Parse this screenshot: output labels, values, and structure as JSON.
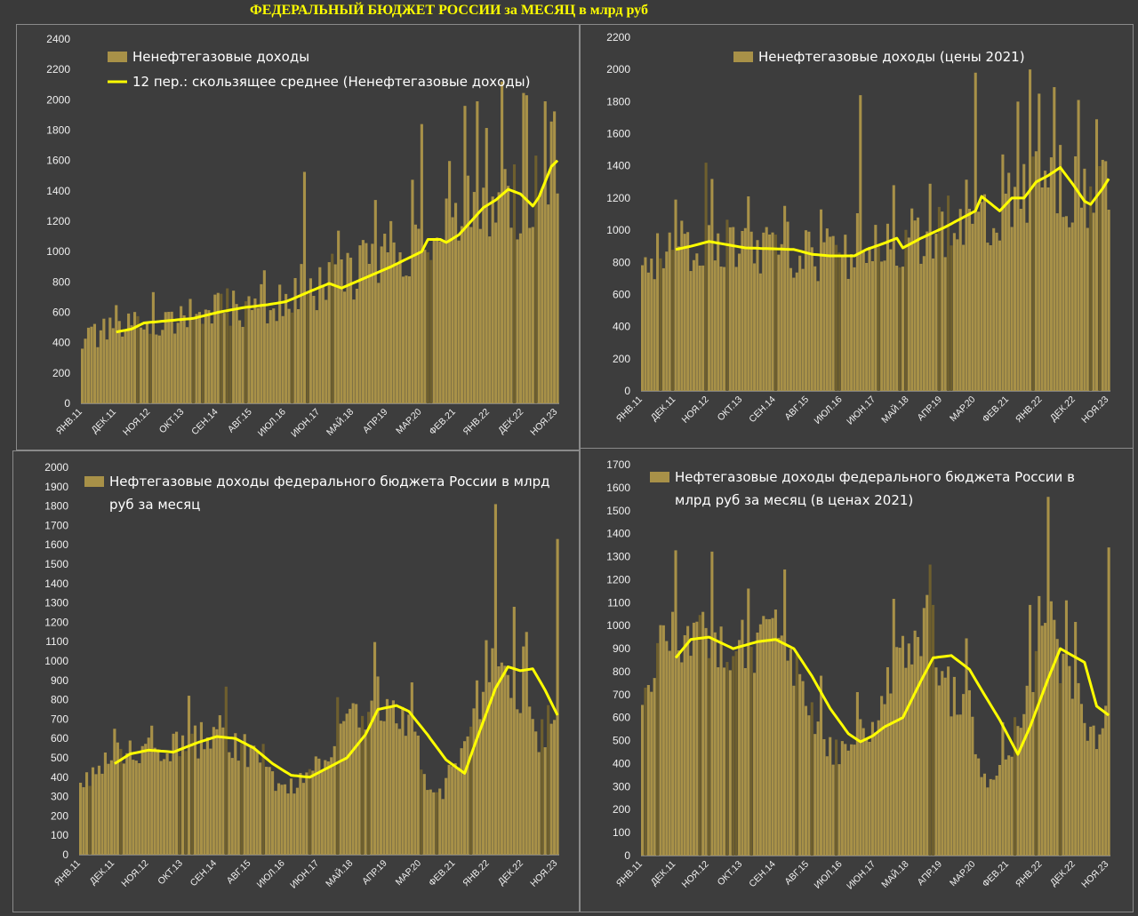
{
  "page": {
    "title": "ФЕДЕРАЛЬНЫЙ БЮДЖЕТ РОССИИ за МЕСЯЦ в млрд руб"
  },
  "colors": {
    "bar": "#a89148",
    "bar_dark": "#6e5f2e",
    "line": "#ffff00",
    "background": "#3d3d3d",
    "text": "#f0f0f0"
  },
  "chart_data": [
    {
      "type": "bar",
      "legend": [
        "Ненефтегазовые доходы",
        "12 пер.: скользящее среднее (Ненефтегазовые доходы)"
      ],
      "x_start": "2011-01",
      "x_tick_labels": [
        "ЯНВ.11",
        "ДЕК.11",
        "НОЯ.12",
        "ОКТ.13",
        "СЕН.14",
        "АВГ.15",
        "ИЮЛ.16",
        "ИЮН.17",
        "МАЙ.18",
        "АПР.19",
        "МАР.20",
        "ФЕВ.21",
        "ЯНВ.22",
        "ДЕК.22",
        "НОЯ.23"
      ],
      "y_ticks": [
        0,
        200,
        400,
        600,
        800,
        1000,
        1200,
        1400,
        1600,
        1800,
        2000,
        2200,
        2400
      ],
      "ylim": [
        0,
        2400
      ],
      "trend_anchors": [
        [
          0,
          420
        ],
        [
          11,
          480
        ],
        [
          23,
          540
        ],
        [
          35,
          560
        ],
        [
          47,
          620
        ],
        [
          59,
          650
        ],
        [
          71,
          700
        ],
        [
          83,
          830
        ],
        [
          95,
          950
        ],
        [
          107,
          1060
        ],
        [
          113,
          1110
        ],
        [
          119,
          1120
        ],
        [
          131,
          1400
        ],
        [
          137,
          1310
        ],
        [
          143,
          1420
        ],
        [
          154,
          1650
        ]
      ],
      "noise": 0.28,
      "ma_start": 11,
      "ma_points": [
        [
          11,
          470
        ],
        [
          16,
          490
        ],
        [
          20,
          530
        ],
        [
          28,
          545
        ],
        [
          36,
          560
        ],
        [
          44,
          600
        ],
        [
          52,
          630
        ],
        [
          60,
          650
        ],
        [
          66,
          670
        ],
        [
          74,
          740
        ],
        [
          80,
          790
        ],
        [
          84,
          760
        ],
        [
          92,
          830
        ],
        [
          100,
          900
        ],
        [
          106,
          960
        ],
        [
          110,
          1000
        ],
        [
          112,
          1080
        ],
        [
          116,
          1080
        ],
        [
          118,
          1060
        ],
        [
          122,
          1110
        ],
        [
          126,
          1200
        ],
        [
          130,
          1290
        ],
        [
          134,
          1340
        ],
        [
          138,
          1410
        ],
        [
          142,
          1380
        ],
        [
          146,
          1300
        ],
        [
          148,
          1360
        ],
        [
          152,
          1560
        ],
        [
          156,
          1640
        ]
      ],
      "spikes": [
        [
          72,
          1525
        ],
        [
          110,
          1840
        ],
        [
          124,
          1960
        ],
        [
          128,
          1990
        ],
        [
          136,
          2120
        ],
        [
          144,
          2030
        ],
        [
          150,
          1990
        ],
        [
          155,
          1840
        ]
      ]
    },
    {
      "type": "bar",
      "legend": [
        "Ненефтегазовые доходы (цены 2021)"
      ],
      "x_start": "2011-01",
      "x_tick_labels": [
        "ЯНВ.11",
        "ДЕК.11",
        "НОЯ.12",
        "ОКТ.13",
        "СЕН.14",
        "АВГ.15",
        "ИЮЛ.16",
        "ИЮН.17",
        "МАЙ.18",
        "АПР.19",
        "МАР.20",
        "ФЕВ.21",
        "ЯНВ.22",
        "ДЕК.22",
        "НОЯ.23"
      ],
      "y_ticks": [
        0,
        200,
        400,
        600,
        800,
        1000,
        1200,
        1400,
        1600,
        1800,
        2000,
        2200
      ],
      "ylim": [
        0,
        2200
      ],
      "trend_anchors": [
        [
          0,
          820
        ],
        [
          11,
          880
        ],
        [
          23,
          920
        ],
        [
          35,
          890
        ],
        [
          47,
          880
        ],
        [
          59,
          850
        ],
        [
          71,
          840
        ],
        [
          83,
          920
        ],
        [
          95,
          1000
        ],
        [
          107,
          1080
        ],
        [
          119,
          1150
        ],
        [
          131,
          1300
        ],
        [
          137,
          1380
        ],
        [
          143,
          1200
        ],
        [
          154,
          1380
        ]
      ],
      "noise": 0.25,
      "ma_start": 11,
      "ma_points": [
        [
          11,
          880
        ],
        [
          16,
          900
        ],
        [
          22,
          930
        ],
        [
          28,
          910
        ],
        [
          34,
          890
        ],
        [
          42,
          885
        ],
        [
          50,
          880
        ],
        [
          56,
          850
        ],
        [
          62,
          840
        ],
        [
          70,
          840
        ],
        [
          74,
          880
        ],
        [
          80,
          920
        ],
        [
          84,
          950
        ],
        [
          86,
          890
        ],
        [
          92,
          950
        ],
        [
          100,
          1020
        ],
        [
          106,
          1080
        ],
        [
          110,
          1120
        ],
        [
          112,
          1210
        ],
        [
          116,
          1150
        ],
        [
          118,
          1120
        ],
        [
          122,
          1200
        ],
        [
          126,
          1200
        ],
        [
          130,
          1300
        ],
        [
          134,
          1340
        ],
        [
          138,
          1390
        ],
        [
          142,
          1290
        ],
        [
          146,
          1180
        ],
        [
          148,
          1160
        ],
        [
          152,
          1260
        ],
        [
          156,
          1380
        ]
      ],
      "spikes": [
        [
          21,
          1420
        ],
        [
          72,
          1840
        ],
        [
          110,
          1980
        ],
        [
          124,
          1800
        ],
        [
          128,
          2000
        ],
        [
          136,
          1890
        ],
        [
          144,
          1810
        ],
        [
          150,
          1690
        ],
        [
          155,
          1480
        ]
      ]
    },
    {
      "type": "bar",
      "legend": [
        "Нефтегазовые доходы федерального бюджета России в млрд",
        "руб за месяц"
      ],
      "x_start": "2011-01",
      "x_tick_labels": [
        "ЯНВ.11",
        "ДЕК.11",
        "НОЯ.12",
        "ОКТ.13",
        "СЕН.14",
        "АВГ.15",
        "ИЮЛ.16",
        "ИЮН.17",
        "МАЙ.18",
        "АПР.19",
        "МАР.20",
        "ФЕВ.21",
        "ЯНВ.22",
        "ДЕК.22",
        "НОЯ.23"
      ],
      "y_ticks": [
        0,
        100,
        200,
        300,
        400,
        500,
        600,
        700,
        800,
        900,
        1000,
        1100,
        1200,
        1300,
        1400,
        1500,
        1600,
        1700,
        1800,
        1900,
        2000
      ],
      "ylim": [
        0,
        2000
      ],
      "trend_anchors": [
        [
          0,
          350
        ],
        [
          6,
          470
        ],
        [
          11,
          500
        ],
        [
          23,
          530
        ],
        [
          35,
          570
        ],
        [
          45,
          620
        ],
        [
          55,
          520
        ],
        [
          63,
          380
        ],
        [
          70,
          330
        ],
        [
          77,
          480
        ],
        [
          85,
          640
        ],
        [
          94,
          790
        ],
        [
          102,
          700
        ],
        [
          108,
          640
        ],
        [
          112,
          350
        ],
        [
          116,
          300
        ],
        [
          122,
          450
        ],
        [
          130,
          800
        ],
        [
          134,
          1000
        ],
        [
          140,
          880
        ],
        [
          144,
          850
        ],
        [
          148,
          600
        ],
        [
          152,
          700
        ],
        [
          156,
          900
        ]
      ],
      "noise": 0.2,
      "ma_start": 11,
      "ma_points": [
        [
          11,
          470
        ],
        [
          16,
          520
        ],
        [
          22,
          540
        ],
        [
          30,
          530
        ],
        [
          38,
          580
        ],
        [
          44,
          610
        ],
        [
          50,
          600
        ],
        [
          56,
          550
        ],
        [
          62,
          470
        ],
        [
          68,
          410
        ],
        [
          74,
          400
        ],
        [
          80,
          450
        ],
        [
          86,
          500
        ],
        [
          92,
          620
        ],
        [
          96,
          750
        ],
        [
          102,
          770
        ],
        [
          106,
          740
        ],
        [
          112,
          620
        ],
        [
          118,
          490
        ],
        [
          124,
          420
        ],
        [
          128,
          600
        ],
        [
          134,
          860
        ],
        [
          138,
          970
        ],
        [
          142,
          950
        ],
        [
          146,
          960
        ],
        [
          150,
          850
        ],
        [
          154,
          720
        ],
        [
          156,
          770
        ]
      ],
      "spikes": [
        [
          45,
          720
        ],
        [
          96,
          920
        ],
        [
          128,
          900
        ],
        [
          134,
          1810
        ],
        [
          140,
          1280
        ],
        [
          144,
          1150
        ],
        [
          154,
          1630
        ],
        [
          156,
          1010
        ]
      ]
    },
    {
      "type": "bar",
      "legend": [
        "Нефтегазовые доходы федерального бюджета России в",
        "млрд руб за месяц (в ценах 2021)"
      ],
      "x_start": "2011-01",
      "x_tick_labels": [
        "ЯНВ.11",
        "ДЕК.11",
        "НОЯ.12",
        "ОКТ.13",
        "СЕН.14",
        "АВГ.15",
        "ИЮЛ.16",
        "ИЮН.17",
        "МАЙ.18",
        "АПР.19",
        "МАР.20",
        "ФЕВ.21",
        "ЯНВ.22",
        "ДЕК.22",
        "НОЯ.23"
      ],
      "y_ticks": [
        0,
        100,
        200,
        300,
        400,
        500,
        600,
        700,
        800,
        900,
        1000,
        1100,
        1200,
        1300,
        1400,
        1500,
        1600,
        1700
      ],
      "ylim": [
        0,
        1700
      ],
      "trend_anchors": [
        [
          0,
          650
        ],
        [
          6,
          880
        ],
        [
          11,
          940
        ],
        [
          23,
          950
        ],
        [
          35,
          920
        ],
        [
          45,
          920
        ],
        [
          50,
          800
        ],
        [
          55,
          640
        ],
        [
          63,
          450
        ],
        [
          70,
          500
        ],
        [
          77,
          600
        ],
        [
          85,
          900
        ],
        [
          94,
          1000
        ],
        [
          102,
          700
        ],
        [
          108,
          650
        ],
        [
          112,
          330
        ],
        [
          116,
          300
        ],
        [
          122,
          500
        ],
        [
          130,
          850
        ],
        [
          134,
          1000
        ],
        [
          140,
          800
        ],
        [
          144,
          750
        ],
        [
          148,
          500
        ],
        [
          152,
          550
        ],
        [
          156,
          780
        ]
      ],
      "noise": 0.18,
      "ma_start": 11,
      "ma_points": [
        [
          11,
          860
        ],
        [
          16,
          940
        ],
        [
          22,
          950
        ],
        [
          30,
          900
        ],
        [
          38,
          930
        ],
        [
          44,
          940
        ],
        [
          50,
          900
        ],
        [
          56,
          780
        ],
        [
          62,
          640
        ],
        [
          68,
          530
        ],
        [
          72,
          495
        ],
        [
          76,
          520
        ],
        [
          80,
          560
        ],
        [
          86,
          600
        ],
        [
          92,
          760
        ],
        [
          96,
          860
        ],
        [
          102,
          870
        ],
        [
          108,
          810
        ],
        [
          112,
          720
        ],
        [
          118,
          590
        ],
        [
          124,
          440
        ],
        [
          128,
          560
        ],
        [
          134,
          770
        ],
        [
          138,
          900
        ],
        [
          142,
          870
        ],
        [
          146,
          840
        ],
        [
          150,
          650
        ],
        [
          154,
          610
        ],
        [
          156,
          640
        ]
      ],
      "spikes": [
        [
          10,
          1060
        ],
        [
          44,
          1070
        ],
        [
          96,
          1090
        ],
        [
          128,
          1090
        ],
        [
          134,
          1560
        ],
        [
          140,
          1110
        ],
        [
          154,
          1340
        ],
        [
          156,
          820
        ]
      ]
    }
  ]
}
